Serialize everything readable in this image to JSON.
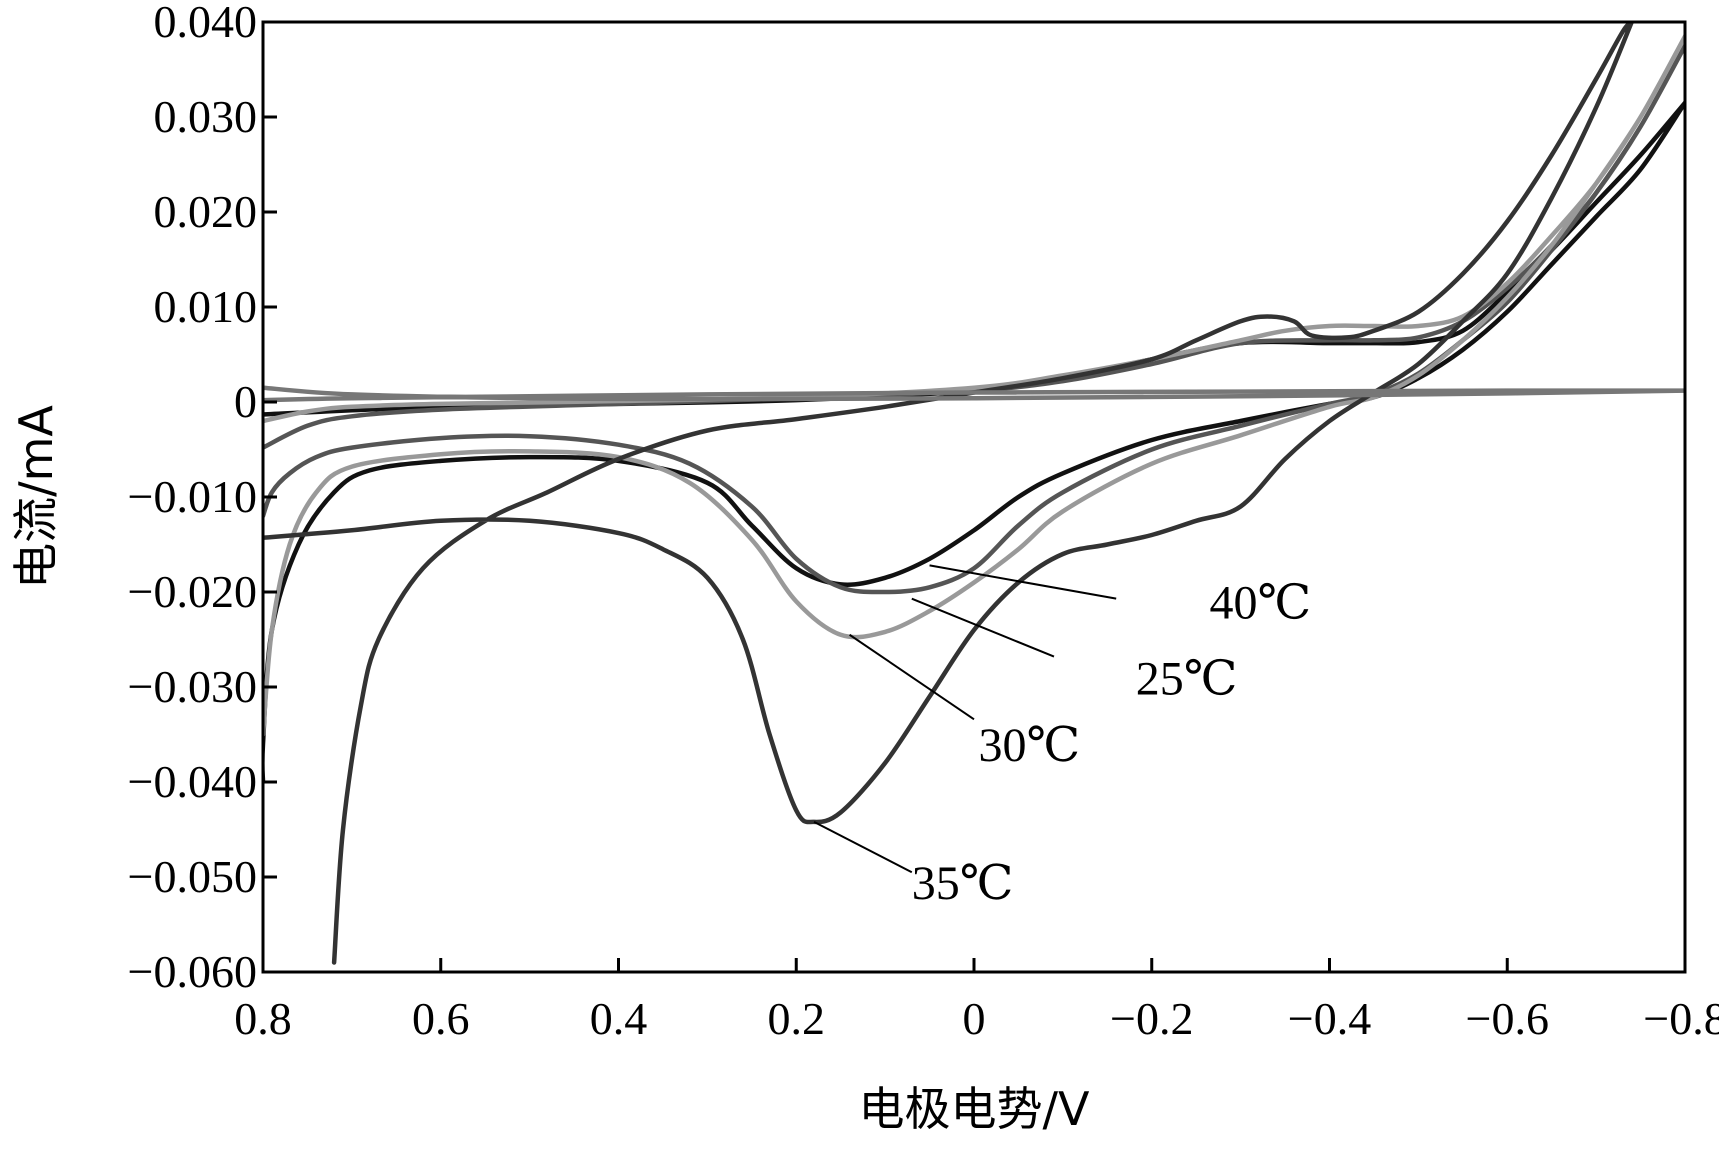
{
  "chart_data": {
    "type": "line",
    "title": "",
    "xlabel": "电极电势/V",
    "ylabel": "电流/mA",
    "xlim": [
      0.8,
      -0.8
    ],
    "ylim": [
      -0.06,
      0.04
    ],
    "x_inverted": true,
    "grid": false,
    "legend": "none",
    "xtick_labels": [
      {
        "value": 0.8,
        "label": "0.8"
      },
      {
        "value": 0.6,
        "label": "0.6"
      },
      {
        "value": 0.4,
        "label": "0.4"
      },
      {
        "value": 0.2,
        "label": "0.2"
      },
      {
        "value": 0.0,
        "label": "0"
      },
      {
        "value": -0.2,
        "label": "−0.2"
      },
      {
        "value": -0.4,
        "label": "−0.4"
      },
      {
        "value": -0.6,
        "label": "−0.6"
      },
      {
        "value": -0.8,
        "label": "−0.8"
      }
    ],
    "ytick_labels": [
      {
        "value": 0.04,
        "label": "0.040"
      },
      {
        "value": 0.03,
        "label": "0.030"
      },
      {
        "value": 0.02,
        "label": "0.020"
      },
      {
        "value": 0.01,
        "label": "0.010"
      },
      {
        "value": 0.0,
        "label": "0"
      },
      {
        "value": -0.01,
        "label": "−0.010"
      },
      {
        "value": -0.02,
        "label": "−0.020"
      },
      {
        "value": -0.03,
        "label": "−0.030"
      },
      {
        "value": -0.04,
        "label": "−0.040"
      },
      {
        "value": -0.05,
        "label": "−0.050"
      },
      {
        "value": -0.06,
        "label": "−0.060"
      }
    ],
    "series": [
      {
        "color": "#111111",
        "points": [
          [
            0.8,
            -0.04
          ],
          [
            0.8,
            -0.036
          ],
          [
            0.79,
            -0.024
          ],
          [
            0.76,
            -0.015
          ],
          [
            0.72,
            -0.0095
          ],
          [
            0.68,
            -0.0072
          ],
          [
            0.6,
            -0.0062
          ],
          [
            0.5,
            -0.0058
          ],
          [
            0.4,
            -0.0062
          ],
          [
            0.3,
            -0.0085
          ],
          [
            0.25,
            -0.013
          ],
          [
            0.2,
            -0.0175
          ],
          [
            0.15,
            -0.0192
          ],
          [
            0.1,
            -0.0185
          ],
          [
            0.05,
            -0.0165
          ],
          [
            0.0,
            -0.0135
          ],
          [
            -0.05,
            -0.01
          ],
          [
            -0.1,
            -0.0075
          ],
          [
            -0.2,
            -0.004
          ],
          [
            -0.3,
            -0.002
          ],
          [
            -0.4,
            -0.0002
          ],
          [
            -0.45,
            0.0005
          ],
          [
            -0.5,
            0.0025
          ],
          [
            -0.55,
            0.0055
          ],
          [
            -0.6,
            0.0095
          ],
          [
            -0.65,
            0.0145
          ],
          [
            -0.7,
            0.0195
          ],
          [
            -0.75,
            0.0245
          ],
          [
            -0.8,
            0.0315
          ],
          [
            -0.8,
            0.0315
          ],
          [
            -0.75,
            0.026
          ],
          [
            -0.7,
            0.021
          ],
          [
            -0.65,
            0.016
          ],
          [
            -0.6,
            0.0115
          ],
          [
            -0.55,
            0.0075
          ],
          [
            -0.5,
            0.0063
          ],
          [
            -0.45,
            0.0062
          ],
          [
            -0.4,
            0.0062
          ],
          [
            -0.3,
            0.0062
          ],
          [
            -0.2,
            0.0045
          ],
          [
            -0.1,
            0.0025
          ],
          [
            0.0,
            0.0012
          ],
          [
            0.2,
            0.0002
          ],
          [
            0.4,
            -0.0002
          ],
          [
            0.6,
            -0.0005
          ],
          [
            0.8,
            -0.0013
          ]
        ]
      },
      {
        "color": "#555555",
        "points": [
          [
            0.8,
            -0.012
          ],
          [
            0.79,
            -0.0095
          ],
          [
            0.77,
            -0.0075
          ],
          [
            0.74,
            -0.0058
          ],
          [
            0.7,
            -0.0048
          ],
          [
            0.6,
            -0.0038
          ],
          [
            0.5,
            -0.0036
          ],
          [
            0.4,
            -0.0045
          ],
          [
            0.32,
            -0.0065
          ],
          [
            0.25,
            -0.011
          ],
          [
            0.2,
            -0.0165
          ],
          [
            0.15,
            -0.0195
          ],
          [
            0.1,
            -0.02
          ],
          [
            0.05,
            -0.0195
          ],
          [
            0.0,
            -0.0175
          ],
          [
            -0.05,
            -0.013
          ],
          [
            -0.1,
            -0.0095
          ],
          [
            -0.2,
            -0.005
          ],
          [
            -0.3,
            -0.0025
          ],
          [
            -0.4,
            -0.0002
          ],
          [
            -0.45,
            0.0008
          ],
          [
            -0.5,
            0.003
          ],
          [
            -0.55,
            0.0065
          ],
          [
            -0.6,
            0.0105
          ],
          [
            -0.65,
            0.016
          ],
          [
            -0.7,
            0.022
          ],
          [
            -0.75,
            0.029
          ],
          [
            -0.8,
            0.0375
          ],
          [
            -0.8,
            0.0375
          ],
          [
            -0.75,
            0.029
          ],
          [
            -0.7,
            0.022
          ],
          [
            -0.65,
            0.0165
          ],
          [
            -0.6,
            0.012
          ],
          [
            -0.55,
            0.0085
          ],
          [
            -0.5,
            0.0068
          ],
          [
            -0.45,
            0.0065
          ],
          [
            -0.4,
            0.0065
          ],
          [
            -0.3,
            0.0062
          ],
          [
            -0.2,
            0.004
          ],
          [
            -0.1,
            0.0022
          ],
          [
            0.0,
            0.0012
          ],
          [
            0.2,
            0.0004
          ],
          [
            0.4,
            -0.0002
          ],
          [
            0.6,
            -0.0008
          ],
          [
            0.7,
            -0.0015
          ],
          [
            0.75,
            -0.0025
          ],
          [
            0.8,
            -0.0048
          ]
        ]
      },
      {
        "color": "#999999",
        "points": [
          [
            0.8,
            -0.035
          ],
          [
            0.79,
            -0.024
          ],
          [
            0.77,
            -0.015
          ],
          [
            0.74,
            -0.0095
          ],
          [
            0.7,
            -0.0068
          ],
          [
            0.6,
            -0.0055
          ],
          [
            0.5,
            -0.0052
          ],
          [
            0.4,
            -0.0058
          ],
          [
            0.32,
            -0.0085
          ],
          [
            0.25,
            -0.0145
          ],
          [
            0.2,
            -0.021
          ],
          [
            0.15,
            -0.0245
          ],
          [
            0.1,
            -0.0242
          ],
          [
            0.05,
            -0.022
          ],
          [
            0.0,
            -0.019
          ],
          [
            -0.05,
            -0.0155
          ],
          [
            -0.1,
            -0.0115
          ],
          [
            -0.2,
            -0.0065
          ],
          [
            -0.3,
            -0.0035
          ],
          [
            -0.4,
            -0.0005
          ],
          [
            -0.45,
            0.0005
          ],
          [
            -0.5,
            0.0028
          ],
          [
            -0.55,
            0.0065
          ],
          [
            -0.6,
            0.011
          ],
          [
            -0.65,
            0.0165
          ],
          [
            -0.7,
            0.023
          ],
          [
            -0.75,
            0.03
          ],
          [
            -0.8,
            0.0385
          ],
          [
            -0.8,
            0.0385
          ],
          [
            -0.75,
            0.03
          ],
          [
            -0.7,
            0.023
          ],
          [
            -0.65,
            0.0175
          ],
          [
            -0.6,
            0.0125
          ],
          [
            -0.55,
            0.009
          ],
          [
            -0.5,
            0.008
          ],
          [
            -0.45,
            0.008
          ],
          [
            -0.4,
            0.008
          ],
          [
            -0.35,
            0.0075
          ],
          [
            -0.3,
            0.0065
          ],
          [
            -0.2,
            0.0045
          ],
          [
            -0.1,
            0.0028
          ],
          [
            0.0,
            0.0015
          ],
          [
            0.2,
            0.0005
          ],
          [
            0.4,
            0.0001
          ],
          [
            0.6,
            -0.0002
          ],
          [
            0.7,
            -0.0005
          ],
          [
            0.75,
            -0.001
          ],
          [
            0.8,
            -0.002
          ]
        ]
      },
      {
        "color": "#333333",
        "points": [
          [
            0.72,
            -0.059
          ],
          [
            0.71,
            -0.045
          ],
          [
            0.69,
            -0.032
          ],
          [
            0.67,
            -0.025
          ],
          [
            0.62,
            -0.0175
          ],
          [
            0.55,
            -0.0125
          ],
          [
            0.48,
            -0.0095
          ],
          [
            0.4,
            -0.006
          ],
          [
            0.3,
            -0.003
          ],
          [
            0.2,
            -0.0018
          ],
          [
            0.1,
            -0.0005
          ],
          [
            0.0,
            0.001
          ],
          [
            -0.1,
            0.0025
          ],
          [
            -0.2,
            0.0045
          ],
          [
            -0.25,
            0.0065
          ],
          [
            -0.3,
            0.0085
          ],
          [
            -0.33,
            0.009
          ],
          [
            -0.36,
            0.0085
          ],
          [
            -0.38,
            0.007
          ],
          [
            -0.42,
            0.0068
          ],
          [
            -0.45,
            0.0075
          ],
          [
            -0.5,
            0.0095
          ],
          [
            -0.55,
            0.0135
          ],
          [
            -0.6,
            0.019
          ],
          [
            -0.65,
            0.026
          ],
          [
            -0.7,
            0.034
          ],
          [
            -0.73,
            0.039
          ],
          [
            -0.74,
            0.04
          ],
          [
            -0.74,
            0.04
          ],
          [
            -0.7,
            0.031
          ],
          [
            -0.65,
            0.0215
          ],
          [
            -0.6,
            0.0135
          ],
          [
            -0.55,
            0.0085
          ],
          [
            -0.5,
            0.004
          ],
          [
            -0.45,
            0.001
          ],
          [
            -0.4,
            -0.002
          ],
          [
            -0.35,
            -0.006
          ],
          [
            -0.3,
            -0.011
          ],
          [
            -0.25,
            -0.0125
          ],
          [
            -0.2,
            -0.014
          ],
          [
            -0.15,
            -0.015
          ],
          [
            -0.1,
            -0.016
          ],
          [
            -0.05,
            -0.019
          ],
          [
            0.0,
            -0.024
          ],
          [
            0.05,
            -0.031
          ],
          [
            0.1,
            -0.038
          ],
          [
            0.15,
            -0.0432
          ],
          [
            0.18,
            -0.0442
          ],
          [
            0.2,
            -0.043
          ],
          [
            0.23,
            -0.035
          ],
          [
            0.26,
            -0.025
          ],
          [
            0.3,
            -0.0185
          ],
          [
            0.35,
            -0.0155
          ],
          [
            0.4,
            -0.0138
          ],
          [
            0.5,
            -0.0125
          ],
          [
            0.6,
            -0.0125
          ],
          [
            0.7,
            -0.0135
          ],
          [
            0.8,
            -0.0143
          ]
        ]
      },
      {
        "color": "#777777",
        "points": [
          [
            0.8,
            0.0015
          ],
          [
            0.7,
            0.0008
          ],
          [
            0.5,
            0.0004
          ],
          [
            0.3,
            0.0003
          ],
          [
            0.0,
            0.0004
          ],
          [
            -0.3,
            0.0006
          ],
          [
            -0.6,
            0.0009
          ],
          [
            -0.8,
            0.0012
          ],
          [
            -0.8,
            0.0012
          ],
          [
            -0.6,
            0.0012
          ],
          [
            -0.3,
            0.0011
          ],
          [
            0.0,
            0.001
          ],
          [
            0.3,
            0.0008
          ],
          [
            0.5,
            0.0006
          ],
          [
            0.7,
            0.0004
          ],
          [
            0.8,
            0.0002
          ]
        ]
      }
    ],
    "annotations": [
      {
        "text": "40℃",
        "x": -0.265,
        "y": -0.021,
        "line_from": [
          -0.16,
          -0.0207
        ],
        "line_to": [
          0.05,
          -0.0172
        ]
      },
      {
        "text": "25℃",
        "x": -0.182,
        "y": -0.029,
        "line_from": [
          -0.09,
          -0.0268
        ],
        "line_to": [
          0.07,
          -0.0207
        ]
      },
      {
        "text": "30℃",
        "x": -0.005,
        "y": -0.036,
        "line_from": [
          0.0,
          -0.0334
        ],
        "line_to": [
          0.14,
          -0.0245
        ]
      },
      {
        "text": "35℃",
        "x": 0.07,
        "y": -0.0505,
        "line_from": [
          0.07,
          -0.0495
        ],
        "line_to": [
          0.18,
          -0.0442
        ]
      }
    ]
  }
}
